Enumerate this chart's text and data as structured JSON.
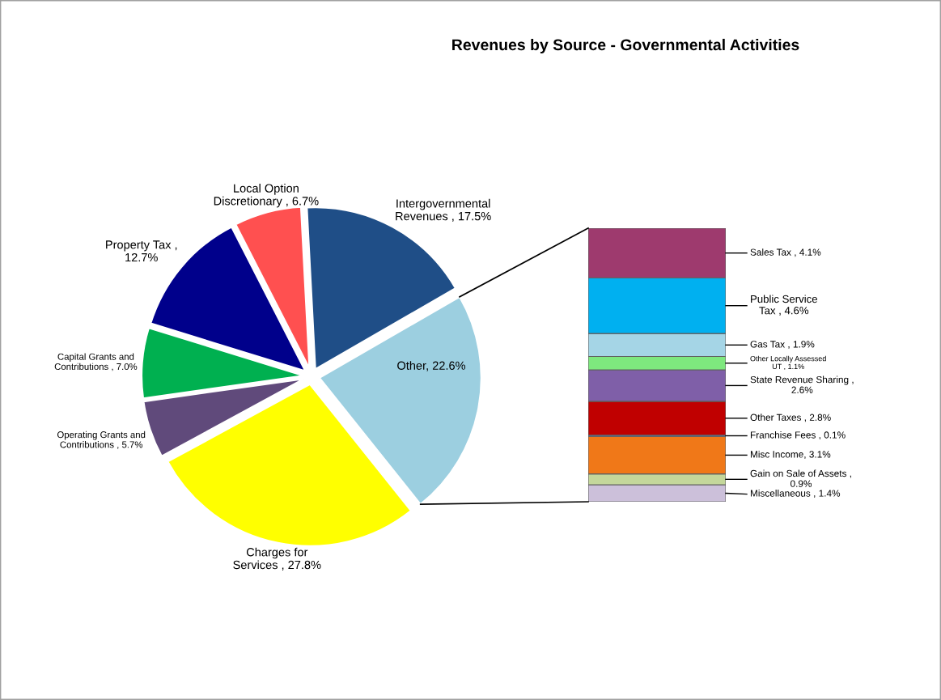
{
  "chart_data": [
    {
      "type": "pie",
      "title": "Revenues by Source - Governmental Activities",
      "categories": [
        "Intergovernmental\nRevenues , 17.5%",
        "Other, 22.6%",
        "Charges for\nServices , 27.8%",
        "Operating Grants and\nContributions , 5.7%",
        "Capital Grants and\nContributions , 7.0%",
        "Property Tax ,\n12.7%",
        "Local Option\nDiscretionary , 6.7%"
      ],
      "values": [
        17.5,
        22.6,
        27.8,
        5.7,
        7.0,
        12.7,
        6.7
      ],
      "colors": [
        "#1f4e87",
        "#9ccfe0",
        "#ffff00",
        "#604a7b",
        "#00b050",
        "#00008b",
        "#ff5050"
      ]
    },
    {
      "type": "bar",
      "stacked": true,
      "categories": [
        null
      ],
      "series": [
        {
          "color": "#ccc0da",
          "values": [
            1.4
          ],
          "value_labels": [
            "Miscellaneous , 1.4%"
          ]
        },
        {
          "color": "#c4d79b",
          "values": [
            0.9
          ],
          "value_labels": [
            "Gain on Sale of Assets ,\n0.9%"
          ]
        },
        {
          "color": "#f07818",
          "values": [
            3.1
          ],
          "value_labels": [
            "Misc Income, 3.1%"
          ]
        },
        {
          "color": "#4f81bd",
          "values": [
            0.1
          ],
          "value_labels": [
            "Franchise Fees , 0.1%"
          ]
        },
        {
          "color": "#c00000",
          "values": [
            2.8
          ],
          "value_labels": [
            "Other Taxes , 2.8%"
          ]
        },
        {
          "color": "#7f5fa8",
          "values": [
            2.6
          ],
          "value_labels": [
            "State Revenue Sharing ,\n2.6%"
          ]
        },
        {
          "color": "#7ee87e",
          "values": [
            1.1
          ],
          "value_labels": [
            "Other Locally Assessed\nUT , 1.1%"
          ]
        },
        {
          "color": "#a5d5e6",
          "values": [
            1.9
          ],
          "value_labels": [
            "Gas Tax , 1.9%"
          ]
        },
        {
          "color": "#00b0f0",
          "values": [
            4.6
          ],
          "value_labels": [
            "Public Service\nTax , 4.6%"
          ]
        },
        {
          "color": "#9e3a6e",
          "values": [
            4.1
          ],
          "value_labels": [
            "Sales Tax , 4.1%"
          ]
        }
      ]
    }
  ]
}
